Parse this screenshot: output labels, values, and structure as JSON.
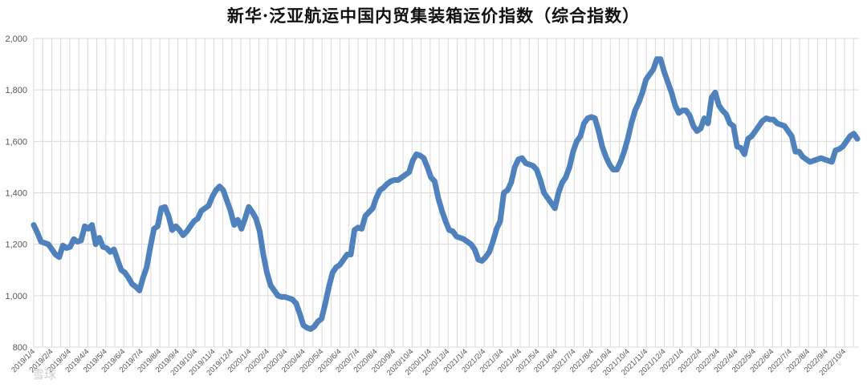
{
  "chart_data": {
    "type": "line",
    "title": "新华·泛亚航运中国内贸集装箱运价指数（综合指数）",
    "xlabel": "",
    "ylabel": "",
    "ylim": [
      800,
      2000
    ],
    "yticks": [
      "800",
      "1,000",
      "1,200",
      "1,400",
      "1,600",
      "1,800",
      "2,000"
    ],
    "ytick_values": [
      800,
      1000,
      1200,
      1400,
      1600,
      1800,
      2000
    ],
    "xticks": [
      "2019/1/4",
      "2019/2/4",
      "2019/3/4",
      "2019/4/4",
      "2019/5/4",
      "2019/6/4",
      "2019/7/4",
      "2019/8/4",
      "2019/9/4",
      "2019/10/4",
      "2019/11/4",
      "2019/12/4",
      "2020/1/4",
      "2020/2/4",
      "2020/3/4",
      "2020/4/4",
      "2020/5/4",
      "2020/6/4",
      "2020/7/4",
      "2020/8/4",
      "2020/9/4",
      "2020/10/4",
      "2020/11/4",
      "2020/12/4",
      "2021/1/4",
      "2021/2/4",
      "2021/3/4",
      "2021/4/4",
      "2021/5/4",
      "2021/6/4",
      "2021/7/4",
      "2021/8/4",
      "2021/9/4",
      "2021/10/4",
      "2021/11/4",
      "2021/12/4",
      "2022/1/4",
      "2022/2/4",
      "2022/3/4",
      "2022/4/4",
      "2022/5/4",
      "2022/6/4",
      "2022/7/4",
      "2022/8/4",
      "2022/9/4",
      "2022/10/4"
    ],
    "grid": true,
    "color": "#4f81bd",
    "series": [
      {
        "values": [
          1275,
          1245,
          1210,
          1205,
          1200,
          1180,
          1160,
          1150,
          1195,
          1185,
          1190,
          1220,
          1210,
          1215,
          1270,
          1260,
          1275,
          1200,
          1225,
          1190,
          1185,
          1170,
          1180,
          1140,
          1100,
          1090,
          1070,
          1045,
          1035,
          1020,
          1070,
          1110,
          1190,
          1260,
          1270,
          1340,
          1345,
          1310,
          1255,
          1270,
          1255,
          1235,
          1250,
          1270,
          1290,
          1300,
          1330,
          1340,
          1350,
          1385,
          1410,
          1425,
          1410,
          1370,
          1330,
          1275,
          1295,
          1260,
          1300,
          1345,
          1325,
          1300,
          1250,
          1160,
          1090,
          1040,
          1020,
          1000,
          995,
          995,
          990,
          985,
          970,
          930,
          885,
          875,
          870,
          880,
          900,
          910,
          970,
          1035,
          1090,
          1110,
          1120,
          1140,
          1160,
          1160,
          1255,
          1265,
          1260,
          1310,
          1325,
          1340,
          1380,
          1410,
          1420,
          1435,
          1445,
          1450,
          1450,
          1460,
          1470,
          1480,
          1525,
          1550,
          1545,
          1535,
          1500,
          1460,
          1445,
          1380,
          1330,
          1290,
          1255,
          1250,
          1230,
          1225,
          1220,
          1210,
          1200,
          1180,
          1140,
          1135,
          1150,
          1170,
          1210,
          1260,
          1290,
          1400,
          1410,
          1440,
          1500,
          1530,
          1535,
          1515,
          1510,
          1505,
          1490,
          1450,
          1400,
          1380,
          1360,
          1340,
          1400,
          1440,
          1460,
          1500,
          1560,
          1600,
          1620,
          1670,
          1690,
          1695,
          1690,
          1640,
          1580,
          1540,
          1510,
          1490,
          1490,
          1520,
          1560,
          1610,
          1670,
          1720,
          1750,
          1790,
          1840,
          1860,
          1880,
          1920,
          1920,
          1870,
          1830,
          1790,
          1740,
          1710,
          1720,
          1720,
          1700,
          1660,
          1640,
          1650,
          1690,
          1670,
          1770,
          1790,
          1740,
          1720,
          1705,
          1670,
          1660,
          1580,
          1575,
          1550,
          1610,
          1620,
          1640,
          1660,
          1680,
          1690,
          1685,
          1685,
          1670,
          1665,
          1660,
          1640,
          1620,
          1560,
          1560,
          1540,
          1530,
          1520,
          1525,
          1530,
          1535,
          1530,
          1525,
          1520,
          1565,
          1570,
          1580,
          1600,
          1620,
          1630,
          1610
        ]
      }
    ]
  },
  "watermark": "雪球"
}
